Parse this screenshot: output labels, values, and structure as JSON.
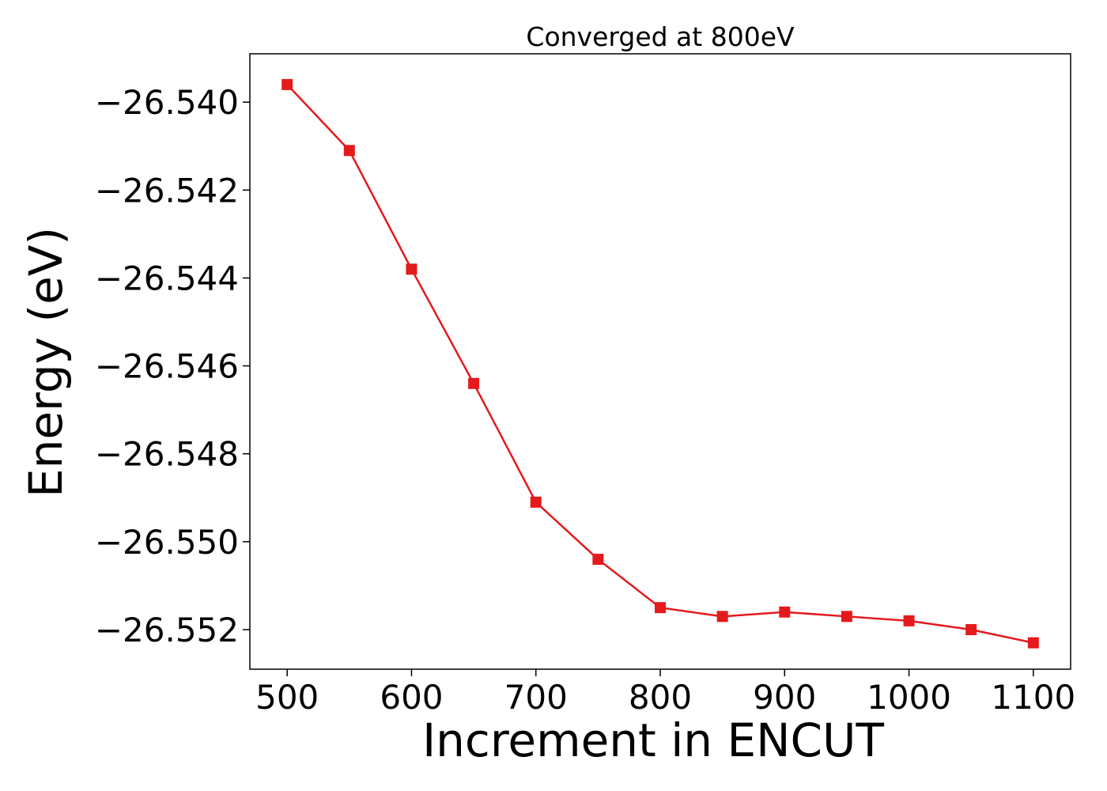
{
  "chart_data": {
    "type": "line",
    "title": "Converged at 800eV",
    "xlabel": "Increment in ENCUT",
    "ylabel": "Energy (eV)",
    "xlim": [
      470,
      1130
    ],
    "ylim": [
      -26.5529,
      -26.5389
    ],
    "xticks": [
      500,
      600,
      700,
      800,
      900,
      1000,
      1100
    ],
    "xtick_labels": [
      "500",
      "600",
      "700",
      "800",
      "900",
      "1000",
      "1100"
    ],
    "yticks": [
      -26.54,
      -26.542,
      -26.544,
      -26.546,
      -26.548,
      -26.55,
      -26.552
    ],
    "ytick_labels": [
      "−26.540",
      "−26.542",
      "−26.544",
      "−26.546",
      "−26.548",
      "−26.550",
      "−26.552"
    ],
    "grid": false,
    "series": [
      {
        "color": "#e41a1c",
        "marker": "square",
        "x": [
          500,
          550,
          600,
          650,
          700,
          750,
          800,
          850,
          900,
          950,
          1000,
          1050,
          1100
        ],
        "y": [
          -26.5396,
          -26.5411,
          -26.5438,
          -26.5464,
          -26.5491,
          -26.5504,
          -26.5515,
          -26.5517,
          -26.5516,
          -26.5517,
          -26.5518,
          -26.552,
          -26.5523
        ]
      }
    ]
  }
}
